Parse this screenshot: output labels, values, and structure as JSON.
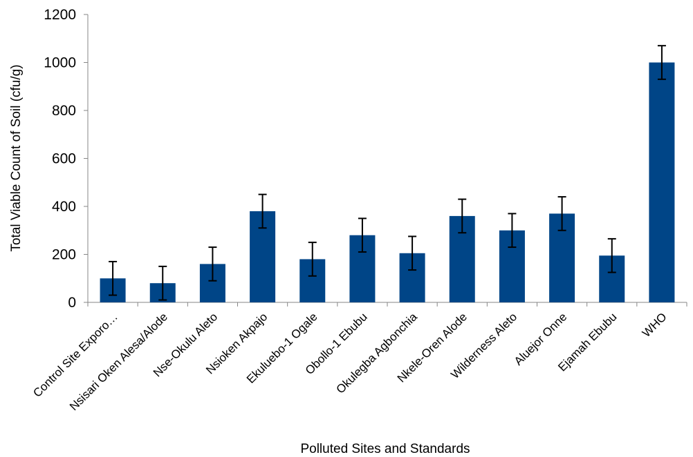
{
  "chart_data": {
    "type": "bar",
    "title": "",
    "xlabel": "Polluted Sites and Standards",
    "ylabel": "Total Viable Count of Soil (cfu/g)",
    "ylim": [
      0,
      1200
    ],
    "yticks": [
      0,
      200,
      400,
      600,
      800,
      1000,
      1200
    ],
    "grid": false,
    "legend": "none",
    "bar_color": "#004587",
    "categories": [
      "Control Site Exporo…",
      "Nsisari Oken Alesa/Alode",
      "Nse-Okulu Aleto",
      "Nsioken Akpajo",
      "Ekuluebo-1 Ogale",
      "Obollo-1 Ebubu",
      "Okulegba Agbonchia",
      "Nkele-Oren Alode",
      "Wilderness Aleto",
      "Aluejor Onne",
      "Ejamah Ebubu",
      "WHO"
    ],
    "series": [
      {
        "values": [
          100,
          80,
          160,
          380,
          180,
          280,
          205,
          360,
          300,
          370,
          195,
          1000
        ],
        "error": [
          70,
          70,
          70,
          70,
          70,
          70,
          70,
          70,
          70,
          70,
          70,
          70
        ]
      }
    ]
  }
}
